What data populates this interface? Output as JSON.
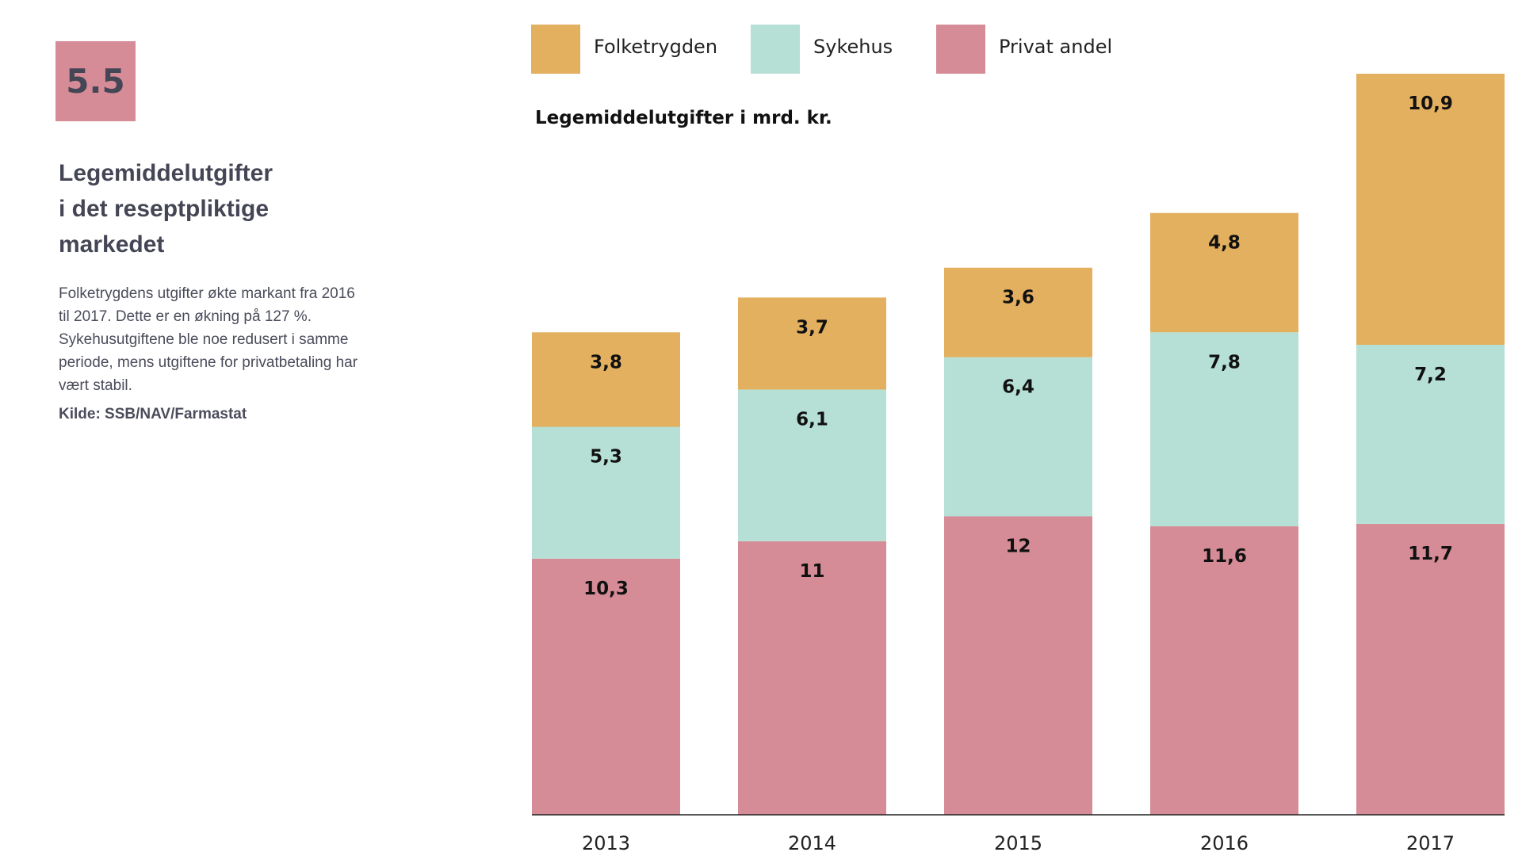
{
  "badge": "5.5",
  "heading": {
    "line1": "Legemiddelutgifter",
    "line2": "i det reseptpliktige",
    "line3": "markedet"
  },
  "description": "Folketrygdens utgifter økte markant fra 2016 til 2017. Dette er en økning på 127 %. Sykehusutgiftene ble noe redusert i samme periode, mens utgiftene for privatbetaling har vært stabil.",
  "source": "Kilde: SSB/NAV/Farmastat",
  "chart_data": {
    "type": "bar",
    "stacked": true,
    "title": "Legemiddelutgifter i mrd. kr.",
    "xlabel": "",
    "ylabel": "",
    "categories": [
      "2013",
      "2014",
      "2015",
      "2016",
      "2017"
    ],
    "series": [
      {
        "name": "Privat andel",
        "color": "#d68c96",
        "values": [
          10.3,
          11,
          12,
          11.6,
          11.7
        ],
        "labels": [
          "10,3",
          "11",
          "12",
          "11,6",
          "11,7"
        ]
      },
      {
        "name": "Sykehus",
        "color": "#b6e0d5",
        "values": [
          5.3,
          6.1,
          6.4,
          7.8,
          7.2
        ],
        "labels": [
          "5,3",
          "6,1",
          "6,4",
          "7,8",
          "7,2"
        ]
      },
      {
        "name": "Folketrygden",
        "color": "#e3b05f",
        "values": [
          3.8,
          3.7,
          3.6,
          4.8,
          10.9
        ],
        "labels": [
          "3,8",
          "3,7",
          "3,6",
          "4,8",
          "10,9"
        ]
      }
    ],
    "legend": [
      "Folketrygden",
      "Sykehus",
      "Privat andel"
    ],
    "legend_position": "top",
    "ylim": [
      0,
      29.8
    ],
    "grid": false,
    "y_axis_visible": false
  }
}
